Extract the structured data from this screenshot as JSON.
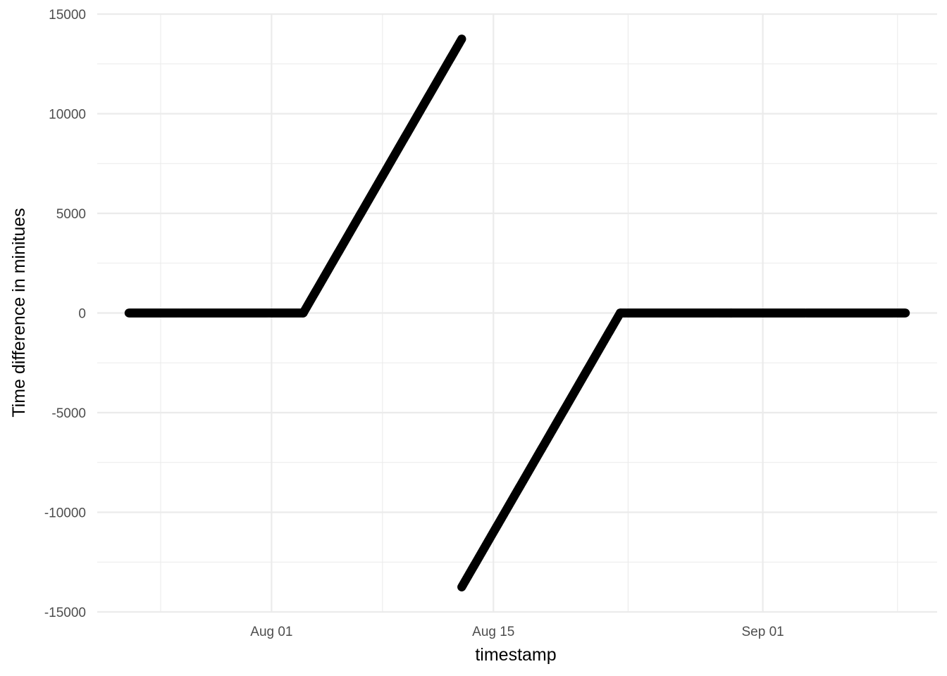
{
  "chart_data": {
    "type": "scatter",
    "xlabel": "timestamp",
    "ylabel": "Time difference in minitues",
    "x_scale": "date",
    "xlim": [
      "2024-07-21",
      "2024-09-12"
    ],
    "x_ticks": [
      {
        "date": "2024-08-01",
        "label": "Aug 01"
      },
      {
        "date": "2024-08-15",
        "label": "Aug 15"
      },
      {
        "date": "2024-09-01",
        "label": "Sep 01"
      }
    ],
    "ylim": [
      -15000,
      15000
    ],
    "y_ticks": [
      {
        "value": 15000,
        "label": "15000"
      },
      {
        "value": 10000,
        "label": "10000"
      },
      {
        "value": 5000,
        "label": "5000"
      },
      {
        "value": 0,
        "label": "0"
      },
      {
        "value": -5000,
        "label": "-5000"
      },
      {
        "value": -10000,
        "label": "-10000"
      },
      {
        "value": -15000,
        "label": "-15000"
      }
    ],
    "grid": true,
    "legend": "none",
    "point_color": "#000000",
    "series": [
      {
        "x": [
          "2024-07-23",
          "2024-08-03"
        ],
        "y": [
          0,
          0
        ]
      },
      {
        "x": [
          "2024-08-03",
          "2024-08-13"
        ],
        "y": [
          0,
          13750
        ]
      },
      {
        "x": [
          "2024-08-13",
          "2024-08-23"
        ],
        "y": [
          -13750,
          0
        ]
      },
      {
        "x": [
          "2024-08-23",
          "2024-08-30"
        ],
        "y": [
          0,
          0
        ]
      },
      {
        "x": [
          "2024-08-30",
          "2024-09-10"
        ],
        "y": [
          0,
          0
        ]
      }
    ]
  }
}
